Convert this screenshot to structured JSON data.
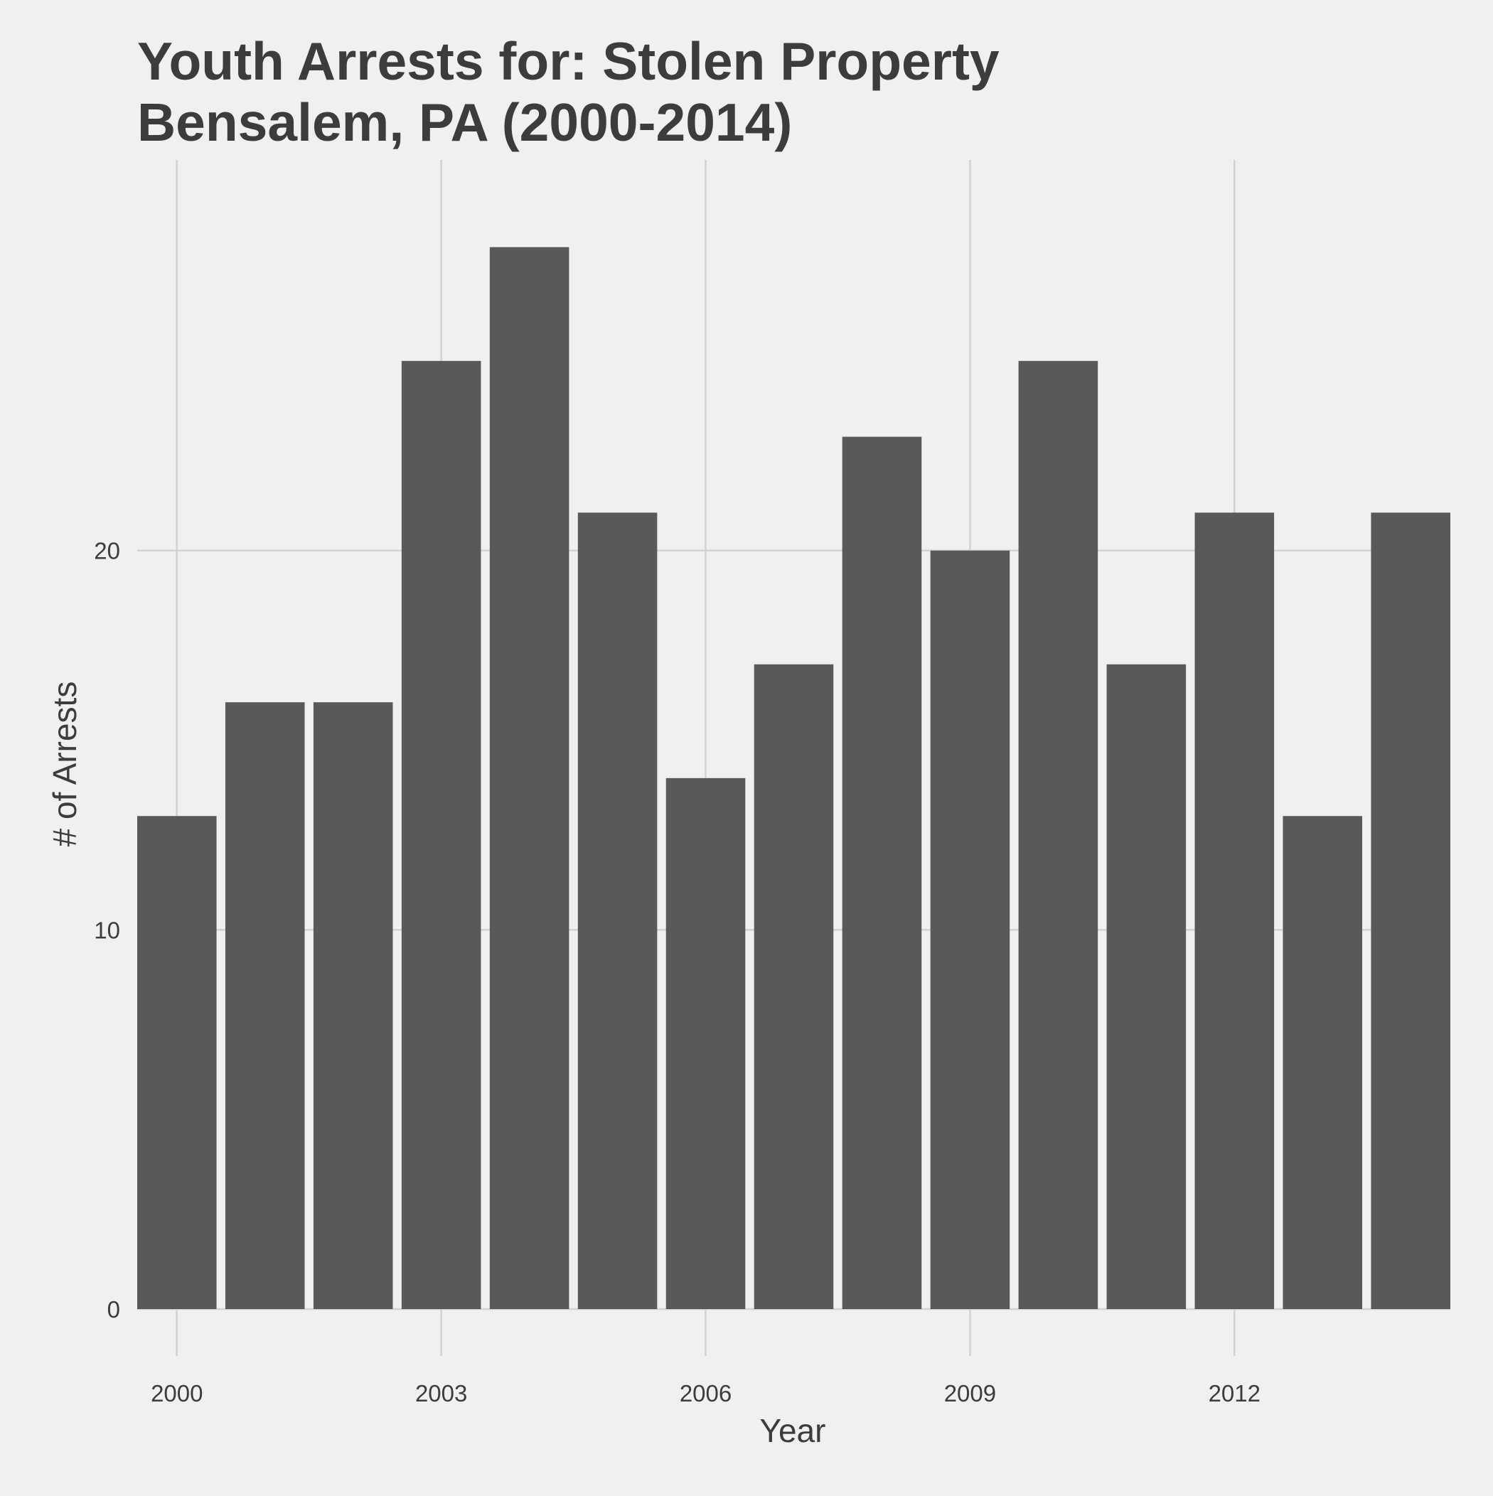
{
  "chart_data": {
    "type": "bar",
    "title_lines": [
      "Youth Arrests for: Stolen Property",
      "Bensalem, PA (2000-2014)"
    ],
    "xlabel": "Year",
    "ylabel": "# of Arrests",
    "categories": [
      2000,
      2001,
      2002,
      2003,
      2004,
      2005,
      2006,
      2007,
      2008,
      2009,
      2010,
      2011,
      2012,
      2013,
      2014
    ],
    "values": [
      13,
      16,
      16,
      25,
      28,
      21,
      14,
      17,
      23,
      20,
      25,
      17,
      21,
      13,
      21
    ],
    "x_ticks": [
      2000,
      2003,
      2006,
      2009,
      2012
    ],
    "y_ticks": [
      0,
      10,
      20
    ],
    "ylim": [
      0,
      30.3
    ],
    "xlim": [
      1999.55,
      2014.45
    ],
    "grid": true,
    "bar_color": "#595959",
    "grid_color": "#d2d2d2",
    "background": "#f0f0f0"
  }
}
